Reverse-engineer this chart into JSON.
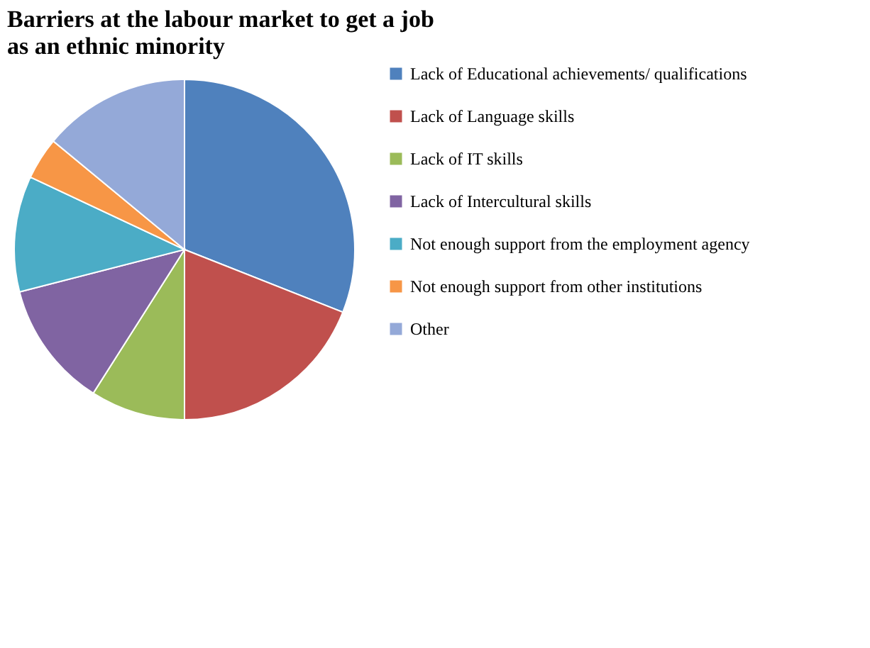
{
  "chart_data": {
    "type": "pie",
    "title": "Barriers at the labour market to get a job as an ethnic minority",
    "categories": [
      "Lack of Educational achievements/ qualifications",
      "Lack of Language skills",
      "Lack of IT skills",
      "Lack of Intercultural skills",
      "Not enough support from the employment agency",
      "Not enough support from other institutions",
      "Other"
    ],
    "values": [
      31,
      19,
      9,
      12,
      11,
      4,
      14
    ],
    "colors": [
      "#4f81bd",
      "#c0504d",
      "#9bbb59",
      "#8064a2",
      "#4bacc6",
      "#f79646",
      "#94a9d8"
    ],
    "legend": "right"
  }
}
